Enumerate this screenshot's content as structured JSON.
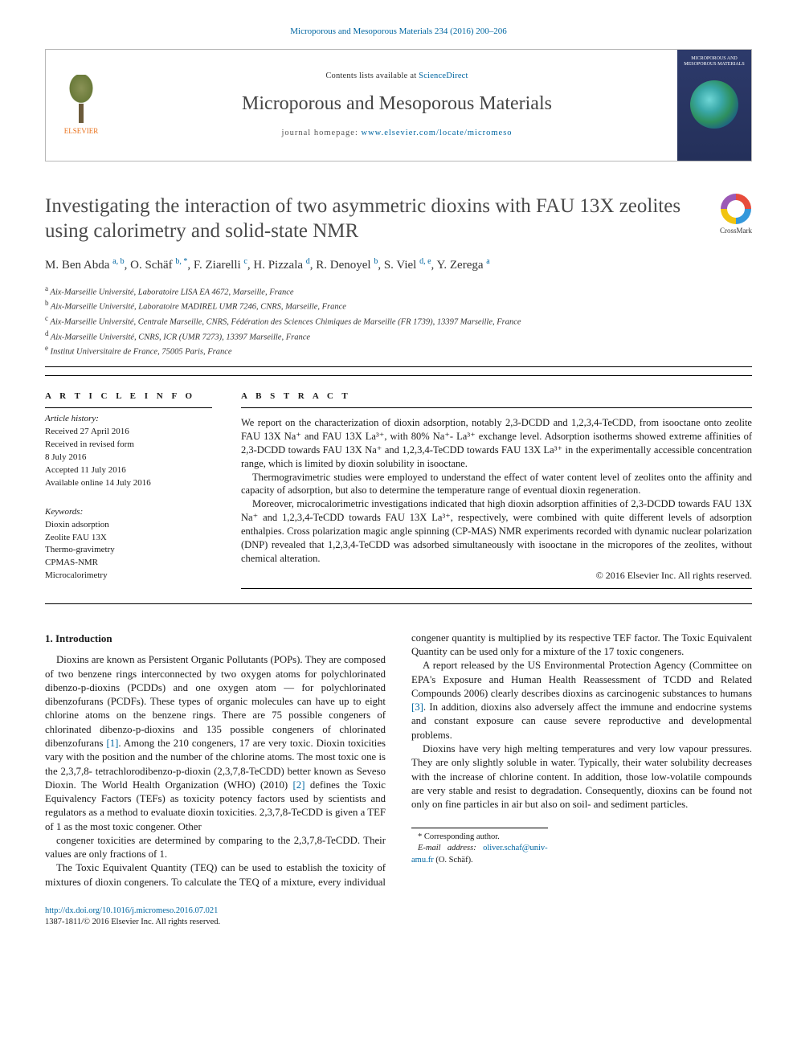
{
  "citation": "Microporous and Mesoporous Materials 234 (2016) 200–206",
  "header": {
    "contents_prefix": "Contents lists available at ",
    "contents_link": "ScienceDirect",
    "journal_name": "Microporous and Mesoporous Materials",
    "homepage_prefix": "journal homepage: ",
    "homepage_url": "www.elsevier.com/locate/micromeso",
    "publisher": "ELSEVIER",
    "cover_title": "MICROPOROUS AND MESOPOROUS MATERIALS"
  },
  "crossmark_label": "CrossMark",
  "title": "Investigating the interaction of two asymmetric dioxins with FAU 13X zeolites using calorimetry and solid-state NMR",
  "authors_html": "M. Ben Abda <sup>a, b</sup>, O. Schäf <sup>b, *</sup>, F. Ziarelli <sup>c</sup>, H. Pizzala <sup>d</sup>, R. Denoyel <sup>b</sup>, S. Viel <sup>d, e</sup>, Y. Zerega <sup>a</sup>",
  "affiliations": [
    "a|Aix-Marseille Université, Laboratoire LISA EA 4672, Marseille, France",
    "b|Aix-Marseille Université, Laboratoire MADIREL UMR 7246, CNRS, Marseille, France",
    "c|Aix-Marseille Université, Centrale Marseille, CNRS, Fédération des Sciences Chimiques de Marseille (FR 1739), 13397 Marseille, France",
    "d|Aix-Marseille Université, CNRS, ICR (UMR 7273), 13397 Marseille, France",
    "e|Institut Universitaire de France, 75005 Paris, France"
  ],
  "article_info_label": "A R T I C L E  I N F O",
  "abstract_label": "A B S T R A C T",
  "history": {
    "head": "Article history:",
    "lines": [
      "Received 27 April 2016",
      "Received in revised form",
      "8 July 2016",
      "Accepted 11 July 2016",
      "Available online 14 July 2016"
    ]
  },
  "keywords": {
    "head": "Keywords:",
    "items": [
      "Dioxin adsorption",
      "Zeolite FAU 13X",
      "Thermo-gravimetry",
      "CPMAS-NMR",
      "Microcalorimetry"
    ]
  },
  "abstract": [
    "We report on the characterization of dioxin adsorption, notably 2,3-DCDD and 1,2,3,4-TeCDD, from isooctane onto zeolite FAU 13X Na⁺ and FAU 13X La³⁺, with 80% Na⁺- La³⁺ exchange level. Adsorption isotherms showed extreme affinities of 2,3-DCDD towards FAU 13X Na⁺ and 1,2,3,4-TeCDD towards FAU 13X La³⁺ in the experimentally accessible concentration range, which is limited by dioxin solubility in isooctane.",
    "Thermogravimetric studies were employed to understand the effect of water content level of zeolites onto the affinity and capacity of adsorption, but also to determine the temperature range of eventual dioxin regeneration.",
    "Moreover, microcalorimetric investigations indicated that high dioxin adsorption affinities of 2,3-DCDD towards FAU 13X Na⁺ and 1,2,3,4-TeCDD towards FAU 13X La³⁺, respectively, were combined with quite different levels of adsorption enthalpies. Cross polarization magic angle spinning (CP-MAS) NMR experiments recorded with dynamic nuclear polarization (DNP) revealed that 1,2,3,4-TeCDD was adsorbed simultaneously with isooctane in the micropores of the zeolites, without chemical alteration."
  ],
  "copyright": "© 2016 Elsevier Inc. All rights reserved.",
  "section_heading": "1. Introduction",
  "body": [
    "Dioxins are known as Persistent Organic Pollutants (POPs). They are composed of two benzene rings interconnected by two oxygen atoms for polychlorinated dibenzo-p-dioxins (PCDDs) and one oxygen atom — for polychlorinated dibenzofurans (PCDFs). These types of organic molecules can have up to eight chlorine atoms on the benzene rings. There are 75 possible congeners of chlorinated dibenzo-p-dioxins and 135 possible congeners of chlorinated dibenzofurans [1]. Among the 210 congeners, 17 are very toxic. Dioxin toxicities vary with the position and the number of the chlorine atoms. The most toxic one is the 2,3,7,8- tetrachlorodibenzo-p-dioxin (2,3,7,8-TeCDD) better known as Seveso Dioxin. The World Health Organization (WHO) (2010) [2] defines the Toxic Equivalency Factors (TEFs) as toxicity potency factors used by scientists and regulators as a method to evaluate dioxin toxicities. 2,3,7,8-TeCDD is given a TEF of 1 as the most toxic congener. Other",
    "congener toxicities are determined by comparing to the 2,3,7,8-TeCDD. Their values are only fractions of 1.",
    "The Toxic Equivalent Quantity (TEQ) can be used to establish the toxicity of mixtures of dioxin congeners. To calculate the TEQ of a mixture, every individual congener quantity is multiplied by its respective TEF factor. The Toxic Equivalent Quantity can be used only for a mixture of the 17 toxic congeners.",
    "A report released by the US Environmental Protection Agency (Committee on EPA's Exposure and Human Health Reassessment of TCDD and Related Compounds 2006) clearly describes dioxins as carcinogenic substances to humans [3]. In addition, dioxins also adversely affect the immune and endocrine systems and constant exposure can cause severe reproductive and developmental problems.",
    "Dioxins have very high melting temperatures and very low vapour pressures. They are only slightly soluble in water. Typically, their water solubility decreases with the increase of chlorine content. In addition, those low-volatile compounds are very stable and resist to degradation. Consequently, dioxins can be found not only on fine particles in air but also on soil- and sediment particles."
  ],
  "footnotes": {
    "corresponding": "* Corresponding author.",
    "email_label": "E-mail address:",
    "email": "oliver.schaf@univ-amu.fr",
    "email_who": "(O. Schäf)."
  },
  "footer": {
    "doi": "http://dx.doi.org/10.1016/j.micromeso.2016.07.021",
    "issn_line": "1387-1811/© 2016 Elsevier Inc. All rights reserved."
  }
}
